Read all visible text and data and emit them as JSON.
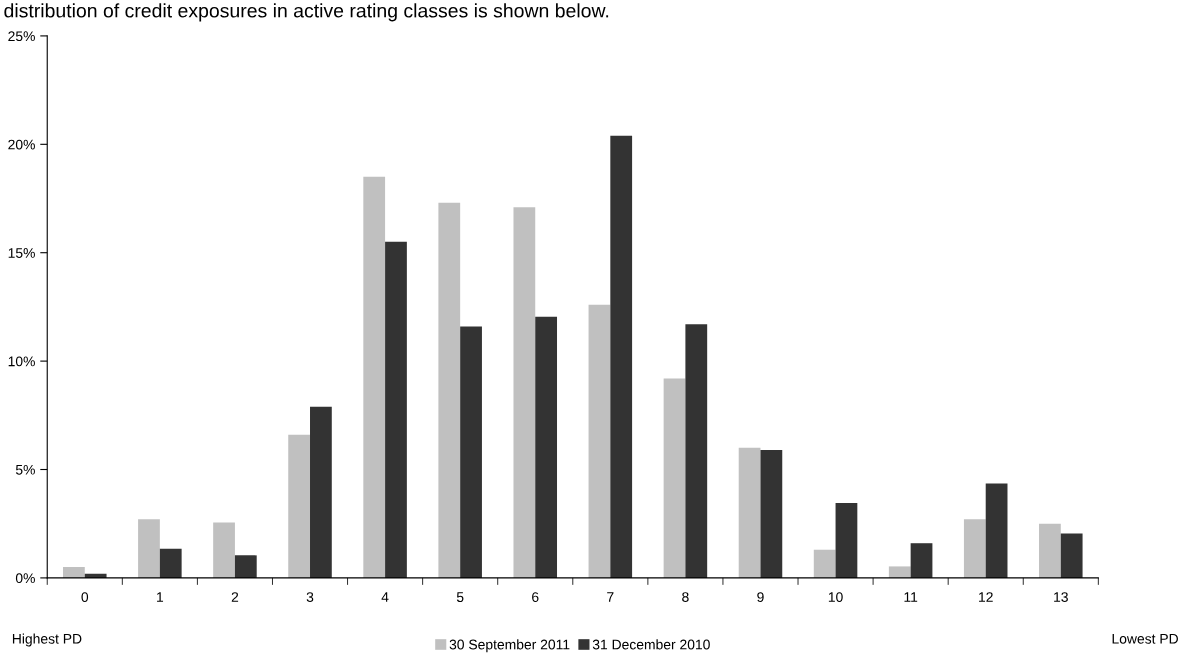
{
  "chart_data": {
    "type": "bar",
    "title": "distribution of credit exposures in active rating classes is shown below.",
    "categories": [
      "0",
      "1",
      "2",
      "3",
      "4",
      "5",
      "6",
      "7",
      "8",
      "9",
      "10",
      "11",
      "12",
      "13"
    ],
    "series": [
      {
        "name": "30 September 2011",
        "color": "#c0c0c0",
        "values": [
          0.5,
          2.7,
          2.55,
          6.6,
          18.5,
          17.3,
          17.1,
          12.6,
          9.2,
          6.0,
          1.3,
          0.53,
          2.7,
          2.5
        ]
      },
      {
        "name": "31 December 2010",
        "color": "#333333",
        "values": [
          0.19,
          1.35,
          1.04,
          7.9,
          15.5,
          11.6,
          12.05,
          20.4,
          11.7,
          5.9,
          3.45,
          1.6,
          4.35,
          2.05
        ]
      }
    ],
    "ylim": [
      0,
      25
    ],
    "yticks": [
      {
        "value": 0,
        "label": "0%"
      },
      {
        "value": 5,
        "label": "5%"
      },
      {
        "value": 10,
        "label": "10%"
      },
      {
        "value": 15,
        "label": "15%"
      },
      {
        "value": 20,
        "label": "20%"
      },
      {
        "value": 25,
        "label": "25%"
      }
    ],
    "annotations": [
      "Highest PD",
      "Lowest PD"
    ],
    "legend": "bottom",
    "grid": false
  }
}
